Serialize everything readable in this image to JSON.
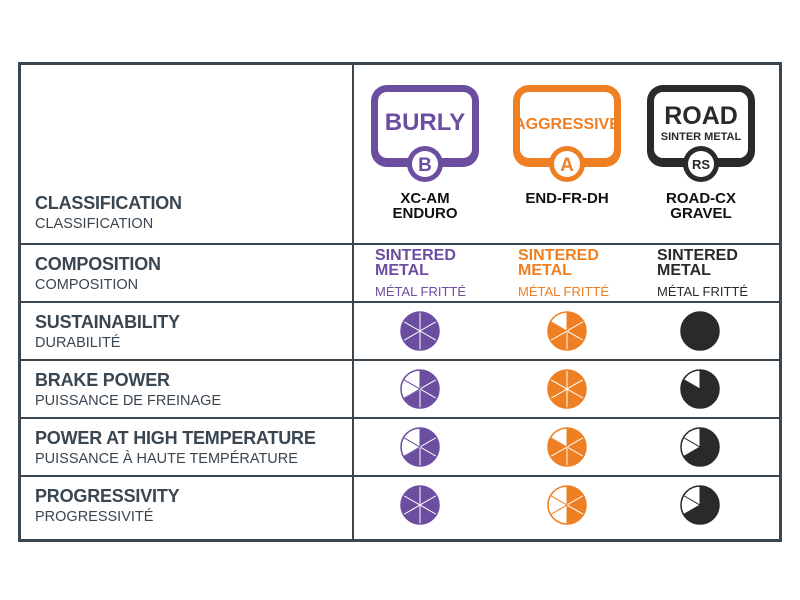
{
  "colors": {
    "burly": "#6c4ea1",
    "aggressive": "#ee7f22",
    "road": "#2a2a2a",
    "border": "#3a4650"
  },
  "rows": [
    {
      "label": "CLASSIFICATION",
      "sublabel": "CLASSIFICATION"
    },
    {
      "label": "COMPOSITION",
      "sublabel": "COMPOSITION"
    },
    {
      "label": "SUSTAINABILITY",
      "sublabel": "DURABILITÉ"
    },
    {
      "label": "BRAKE POWER",
      "sublabel": "PUISSANCE DE FREINAGE"
    },
    {
      "label": "POWER AT HIGH TEMPERATURE",
      "sublabel": "PUISSANCE À HAUTE TEMPÉRATURE"
    },
    {
      "label": "PROGRESSIVITY",
      "sublabel": "PROGRESSIVITÉ"
    }
  ],
  "products": [
    {
      "key": "burly",
      "name": "BURLY",
      "subname": "",
      "letter": "B",
      "range": [
        "XC-AM",
        "ENDURO"
      ],
      "composition": "SINTERED METAL",
      "composition_fr": "MÉTAL FRITTÉ",
      "ratings": {
        "sustainability": 6,
        "brake_power": 4,
        "high_temp_power": 4,
        "progressivity": 6
      }
    },
    {
      "key": "aggressive",
      "name": "AGGRESSIVE",
      "subname": "",
      "letter": "A",
      "range": [
        "END-FR-DH"
      ],
      "composition": "SINTERED METAL",
      "composition_fr": "MÉTAL FRITTÉ",
      "ratings": {
        "sustainability": 5,
        "brake_power": 6,
        "high_temp_power": 5,
        "progressivity": 3
      }
    },
    {
      "key": "road",
      "name": "ROAD",
      "subname": "SINTER METAL",
      "letter": "RS",
      "range": [
        "ROAD-CX",
        "GRAVEL"
      ],
      "composition": "SINTERED METAL",
      "composition_fr": "MÉTAL FRITTÉ",
      "ratings": {
        "sustainability": 6,
        "brake_power": 5,
        "high_temp_power": 4,
        "progressivity": 4
      }
    }
  ]
}
